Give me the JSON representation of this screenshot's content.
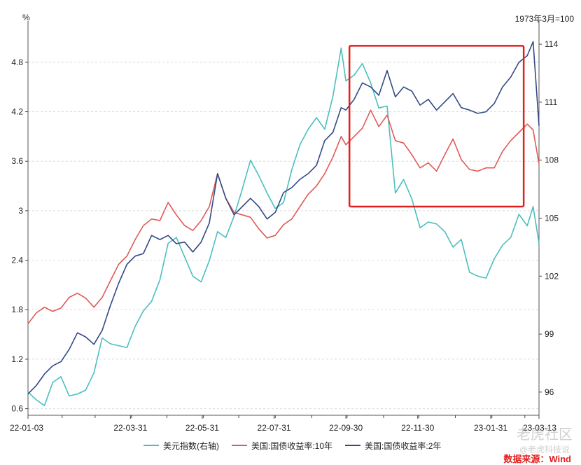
{
  "chart_data": {
    "type": "line",
    "left_unit": "%",
    "right_unit": "1973年3月=100",
    "yleft_ticks": [
      "0.6",
      "1.2",
      "1.8",
      "2.4",
      "3",
      "3.6",
      "4.2",
      "4.8"
    ],
    "yleft_tick_values": [
      0.6,
      1.2,
      1.8,
      2.4,
      3.0,
      3.6,
      4.2,
      4.8
    ],
    "yleft_lim": [
      0.52,
      5.3
    ],
    "yright_ticks": [
      "96",
      "99",
      "102",
      "105",
      "108",
      "111",
      "114"
    ],
    "yright_tick_values": [
      96,
      99,
      102,
      105,
      108,
      111,
      114
    ],
    "yright_lim": [
      94.8,
      115.2
    ],
    "x_ticks": [
      "22-01-03",
      "22-03-31",
      "22-05-31",
      "22-07-31",
      "22-09-30",
      "22-11-30",
      "23-01-31",
      "23-03-13"
    ],
    "x_tick_dates": [
      "2022-01-03",
      "2022-03-31",
      "2022-05-31",
      "2022-07-31",
      "2022-09-30",
      "2022-11-30",
      "2023-01-31",
      "2023-03-13"
    ],
    "x_range": [
      "2022-01-03",
      "2023-03-13"
    ],
    "grid": true,
    "legend_position": "bottom",
    "highlight_box": {
      "x_start": "2022-10-03",
      "x_end": "2023-02-28",
      "y_left_start": 3.05,
      "y_left_end": 5.0,
      "color": "#e0201e"
    },
    "series": [
      {
        "name": "美元指数(右轴)",
        "axis": "right",
        "color": "#4bbfbf",
        "points": [
          [
            "2022-01-03",
            96.0
          ],
          [
            "2022-01-10",
            95.6
          ],
          [
            "2022-01-17",
            95.3
          ],
          [
            "2022-01-24",
            96.5
          ],
          [
            "2022-01-31",
            96.8
          ],
          [
            "2022-02-07",
            95.8
          ],
          [
            "2022-02-14",
            95.9
          ],
          [
            "2022-02-21",
            96.1
          ],
          [
            "2022-02-28",
            97.0
          ],
          [
            "2022-03-07",
            98.8
          ],
          [
            "2022-03-14",
            98.5
          ],
          [
            "2022-03-21",
            98.4
          ],
          [
            "2022-03-28",
            98.3
          ],
          [
            "2022-04-04",
            99.4
          ],
          [
            "2022-04-11",
            100.2
          ],
          [
            "2022-04-18",
            100.7
          ],
          [
            "2022-04-25",
            101.8
          ],
          [
            "2022-05-02",
            103.7
          ],
          [
            "2022-05-09",
            104.0
          ],
          [
            "2022-05-16",
            103.0
          ],
          [
            "2022-05-23",
            102.0
          ],
          [
            "2022-05-30",
            101.7
          ],
          [
            "2022-06-06",
            102.8
          ],
          [
            "2022-06-13",
            104.3
          ],
          [
            "2022-06-20",
            104.0
          ],
          [
            "2022-06-27",
            105.1
          ],
          [
            "2022-07-04",
            106.5
          ],
          [
            "2022-07-11",
            108.0
          ],
          [
            "2022-07-18",
            107.2
          ],
          [
            "2022-07-25",
            106.3
          ],
          [
            "2022-08-01",
            105.5
          ],
          [
            "2022-08-08",
            105.8
          ],
          [
            "2022-08-15",
            107.5
          ],
          [
            "2022-08-22",
            108.8
          ],
          [
            "2022-08-29",
            109.6
          ],
          [
            "2022-09-05",
            110.2
          ],
          [
            "2022-09-12",
            109.6
          ],
          [
            "2022-09-19",
            111.3
          ],
          [
            "2022-09-26",
            113.8
          ],
          [
            "2022-09-30",
            112.1
          ],
          [
            "2022-10-07",
            112.4
          ],
          [
            "2022-10-14",
            113.0
          ],
          [
            "2022-10-21",
            112.0
          ],
          [
            "2022-10-28",
            110.7
          ],
          [
            "2022-11-04",
            110.8
          ],
          [
            "2022-11-11",
            106.3
          ],
          [
            "2022-11-18",
            107.0
          ],
          [
            "2022-11-25",
            106.0
          ],
          [
            "2022-12-02",
            104.5
          ],
          [
            "2022-12-09",
            104.8
          ],
          [
            "2022-12-16",
            104.7
          ],
          [
            "2022-12-23",
            104.3
          ],
          [
            "2022-12-30",
            103.5
          ],
          [
            "2023-01-06",
            103.9
          ],
          [
            "2023-01-13",
            102.2
          ],
          [
            "2023-01-20",
            102.0
          ],
          [
            "2023-01-27",
            101.9
          ],
          [
            "2023-02-03",
            102.9
          ],
          [
            "2023-02-10",
            103.6
          ],
          [
            "2023-02-17",
            104.0
          ],
          [
            "2023-02-24",
            105.2
          ],
          [
            "2023-03-03",
            104.6
          ],
          [
            "2023-03-08",
            105.6
          ],
          [
            "2023-03-13",
            103.7
          ]
        ]
      },
      {
        "name": "美国:国债收益率:10年",
        "axis": "left",
        "color": "#e05a57",
        "points": [
          [
            "2022-01-03",
            1.63
          ],
          [
            "2022-01-10",
            1.76
          ],
          [
            "2022-01-17",
            1.83
          ],
          [
            "2022-01-24",
            1.78
          ],
          [
            "2022-01-31",
            1.82
          ],
          [
            "2022-02-07",
            1.95
          ],
          [
            "2022-02-14",
            2.0
          ],
          [
            "2022-02-21",
            1.94
          ],
          [
            "2022-02-28",
            1.83
          ],
          [
            "2022-03-07",
            1.95
          ],
          [
            "2022-03-14",
            2.15
          ],
          [
            "2022-03-21",
            2.35
          ],
          [
            "2022-03-28",
            2.45
          ],
          [
            "2022-04-04",
            2.65
          ],
          [
            "2022-04-11",
            2.82
          ],
          [
            "2022-04-18",
            2.9
          ],
          [
            "2022-04-25",
            2.88
          ],
          [
            "2022-05-02",
            3.1
          ],
          [
            "2022-05-09",
            2.95
          ],
          [
            "2022-05-16",
            2.82
          ],
          [
            "2022-05-23",
            2.76
          ],
          [
            "2022-05-30",
            2.88
          ],
          [
            "2022-06-06",
            3.05
          ],
          [
            "2022-06-13",
            3.45
          ],
          [
            "2022-06-20",
            3.15
          ],
          [
            "2022-06-27",
            2.98
          ],
          [
            "2022-07-04",
            2.95
          ],
          [
            "2022-07-11",
            2.92
          ],
          [
            "2022-07-18",
            2.78
          ],
          [
            "2022-07-25",
            2.67
          ],
          [
            "2022-08-01",
            2.7
          ],
          [
            "2022-08-08",
            2.83
          ],
          [
            "2022-08-15",
            2.9
          ],
          [
            "2022-08-22",
            3.05
          ],
          [
            "2022-08-29",
            3.2
          ],
          [
            "2022-09-05",
            3.3
          ],
          [
            "2022-09-12",
            3.45
          ],
          [
            "2022-09-19",
            3.65
          ],
          [
            "2022-09-26",
            3.9
          ],
          [
            "2022-09-30",
            3.8
          ],
          [
            "2022-10-07",
            3.9
          ],
          [
            "2022-10-14",
            4.0
          ],
          [
            "2022-10-21",
            4.22
          ],
          [
            "2022-10-28",
            4.02
          ],
          [
            "2022-11-04",
            4.16
          ],
          [
            "2022-11-11",
            3.85
          ],
          [
            "2022-11-18",
            3.82
          ],
          [
            "2022-11-25",
            3.68
          ],
          [
            "2022-12-02",
            3.52
          ],
          [
            "2022-12-09",
            3.58
          ],
          [
            "2022-12-16",
            3.48
          ],
          [
            "2022-12-23",
            3.68
          ],
          [
            "2022-12-30",
            3.87
          ],
          [
            "2023-01-06",
            3.62
          ],
          [
            "2023-01-13",
            3.5
          ],
          [
            "2023-01-20",
            3.48
          ],
          [
            "2023-01-27",
            3.52
          ],
          [
            "2023-02-03",
            3.52
          ],
          [
            "2023-02-10",
            3.72
          ],
          [
            "2023-02-17",
            3.85
          ],
          [
            "2023-02-24",
            3.95
          ],
          [
            "2023-03-03",
            4.05
          ],
          [
            "2023-03-08",
            3.98
          ],
          [
            "2023-03-13",
            3.57
          ]
        ]
      },
      {
        "name": "美国:国债收益率:2年",
        "axis": "left",
        "color": "#344a86",
        "points": [
          [
            "2022-01-03",
            0.78
          ],
          [
            "2022-01-10",
            0.88
          ],
          [
            "2022-01-17",
            1.02
          ],
          [
            "2022-01-24",
            1.12
          ],
          [
            "2022-01-31",
            1.17
          ],
          [
            "2022-02-07",
            1.32
          ],
          [
            "2022-02-14",
            1.52
          ],
          [
            "2022-02-21",
            1.47
          ],
          [
            "2022-02-28",
            1.38
          ],
          [
            "2022-03-07",
            1.55
          ],
          [
            "2022-03-14",
            1.85
          ],
          [
            "2022-03-21",
            2.12
          ],
          [
            "2022-03-28",
            2.35
          ],
          [
            "2022-04-04",
            2.45
          ],
          [
            "2022-04-11",
            2.48
          ],
          [
            "2022-04-18",
            2.7
          ],
          [
            "2022-04-25",
            2.65
          ],
          [
            "2022-05-02",
            2.7
          ],
          [
            "2022-05-09",
            2.6
          ],
          [
            "2022-05-16",
            2.62
          ],
          [
            "2022-05-23",
            2.5
          ],
          [
            "2022-05-30",
            2.62
          ],
          [
            "2022-06-06",
            2.85
          ],
          [
            "2022-06-13",
            3.45
          ],
          [
            "2022-06-20",
            3.15
          ],
          [
            "2022-06-27",
            2.95
          ],
          [
            "2022-07-04",
            3.05
          ],
          [
            "2022-07-11",
            3.15
          ],
          [
            "2022-07-18",
            3.05
          ],
          [
            "2022-07-25",
            2.9
          ],
          [
            "2022-08-01",
            2.98
          ],
          [
            "2022-08-08",
            3.22
          ],
          [
            "2022-08-15",
            3.28
          ],
          [
            "2022-08-22",
            3.38
          ],
          [
            "2022-08-29",
            3.45
          ],
          [
            "2022-09-05",
            3.55
          ],
          [
            "2022-09-12",
            3.85
          ],
          [
            "2022-09-19",
            3.95
          ],
          [
            "2022-09-26",
            4.25
          ],
          [
            "2022-09-30",
            4.22
          ],
          [
            "2022-10-07",
            4.35
          ],
          [
            "2022-10-14",
            4.55
          ],
          [
            "2022-10-21",
            4.5
          ],
          [
            "2022-10-28",
            4.4
          ],
          [
            "2022-11-04",
            4.7
          ],
          [
            "2022-11-11",
            4.38
          ],
          [
            "2022-11-18",
            4.5
          ],
          [
            "2022-11-25",
            4.45
          ],
          [
            "2022-12-02",
            4.28
          ],
          [
            "2022-12-09",
            4.35
          ],
          [
            "2022-12-16",
            4.22
          ],
          [
            "2022-12-23",
            4.32
          ],
          [
            "2022-12-30",
            4.42
          ],
          [
            "2023-01-06",
            4.25
          ],
          [
            "2023-01-13",
            4.22
          ],
          [
            "2023-01-20",
            4.18
          ],
          [
            "2023-01-27",
            4.2
          ],
          [
            "2023-02-03",
            4.3
          ],
          [
            "2023-02-10",
            4.5
          ],
          [
            "2023-02-17",
            4.62
          ],
          [
            "2023-02-24",
            4.8
          ],
          [
            "2023-03-03",
            4.88
          ],
          [
            "2023-03-08",
            5.05
          ],
          [
            "2023-03-13",
            4.03
          ]
        ]
      }
    ]
  },
  "footer": {
    "source": "数据来源：Wind",
    "watermark_main": "老虎社区",
    "watermark_sub": "@老虎科技说"
  }
}
